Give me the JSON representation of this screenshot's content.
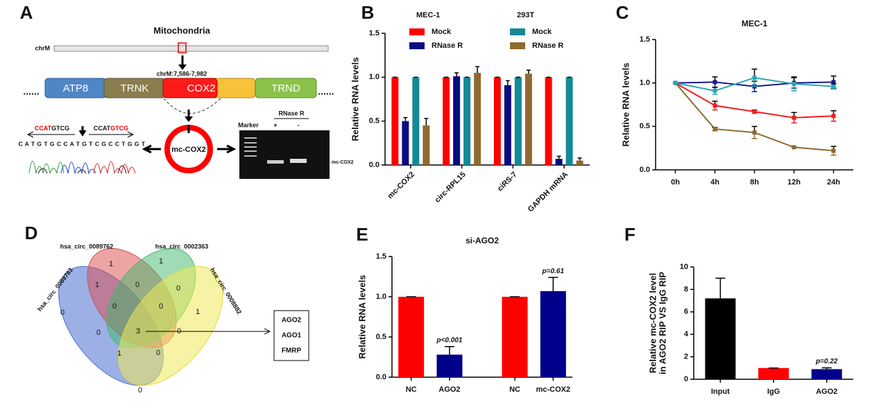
{
  "panel_a": {
    "letter": "A",
    "title": "Mitochondria",
    "chromosome": "chrM",
    "coordinate": "chrM:7,586-7,982",
    "genes": [
      "ATP8",
      "TRNK",
      "COX2",
      "TRND"
    ],
    "circ": "mc-COX2",
    "junction_left": [
      "CCAT",
      "GTCG"
    ],
    "junction_right": [
      "CCAT",
      "GTCG"
    ],
    "sequence": "C A T G T G C C A T G T C G C C T G G T",
    "gel_header": "RNase R",
    "gel_lanes": [
      "Marker",
      "+",
      "-"
    ],
    "gel_band": "mc-COX2"
  },
  "panel_d": {
    "letter": "D",
    "sets": [
      "hsa_circ_0089762",
      "hsa_circ_0002363",
      "hsa_circ_0089763",
      "hsa_circ_0008882"
    ],
    "counts": [
      1,
      1,
      1,
      0,
      0,
      0,
      0,
      0,
      1,
      0,
      3,
      0,
      1,
      0,
      0
    ],
    "proteins": [
      "AGO2",
      "AGO1",
      "FMRP"
    ]
  },
  "chart_data": [
    {
      "panel": "B",
      "type": "bar",
      "ylabel": "Relative RNA levels",
      "legend_titles": [
        "MEC-1",
        "293T"
      ],
      "categories": [
        "mc-COX2",
        "circ-RPL15",
        "ciRS-7",
        "GAPDH mRNA"
      ],
      "series": [
        {
          "name": "Mock",
          "color": "#ff0000",
          "values": [
            1,
            1,
            1,
            1
          ],
          "errors": [
            0,
            0,
            0,
            0
          ]
        },
        {
          "name": "RNase R",
          "color": "#0b0b80",
          "values": [
            0.5,
            1.01,
            0.91,
            0.07
          ],
          "errors": [
            0.04,
            0.04,
            0.05,
            0.03
          ]
        },
        {
          "name": "Mock",
          "color": "#138a95",
          "values": [
            1,
            1,
            1,
            1
          ],
          "errors": [
            0,
            0,
            0,
            0
          ]
        },
        {
          "name": "RNase R",
          "color": "#8f6a2f",
          "values": [
            0.45,
            1.05,
            1.04,
            0.05
          ],
          "errors": [
            0.08,
            0.07,
            0.04,
            0.03
          ]
        }
      ],
      "ylim": [
        0,
        1.5
      ],
      "yticks": [
        {
          "value": 0,
          "label": "0.0"
        },
        0.5,
        {
          "value": 1,
          "label": "1.0"
        },
        1.5
      ]
    },
    {
      "panel": "C",
      "type": "line",
      "title": "MEC-1",
      "ylabel": "Relative RNA levels",
      "categories": [
        "0h",
        "4h",
        "8h",
        "12h",
        "24h"
      ],
      "series": [
        {
          "color": "#f01e1e",
          "values": [
            1,
            0.74,
            0.67,
            0.6,
            0.62
          ],
          "errors": [
            0,
            0.05,
            0.02,
            0.06,
            0.06
          ]
        },
        {
          "color": "#8f6a2f",
          "values": [
            1,
            0.47,
            0.43,
            0.26,
            0.22
          ],
          "errors": [
            0,
            0.02,
            0.07,
            0,
            0.05
          ]
        },
        {
          "color": "#1a1a8a",
          "values": [
            1,
            1.01,
            0.96,
            1.0,
            1.01
          ],
          "errors": [
            0,
            0.06,
            0.06,
            0.06,
            0.07
          ]
        },
        {
          "color": "#2aa7b0",
          "values": [
            1,
            0.91,
            1.06,
            0.99,
            0.96
          ],
          "errors": [
            0,
            0.04,
            0.1,
            0.08,
            0.03
          ]
        }
      ],
      "ylim": [
        0,
        1.5
      ],
      "yticks": [
        {
          "value": 0,
          "label": "0.0"
        },
        0.5,
        {
          "value": 1,
          "label": "1.0"
        },
        1.5
      ]
    },
    {
      "panel": "E",
      "type": "bar",
      "title": "si-AGO2",
      "ylabel": "Relative RNA levels",
      "categories": [
        "NC",
        "AGO2",
        "NC",
        "mc-COX2"
      ],
      "values": [
        1,
        0.28,
        1,
        1.07
      ],
      "errors": [
        0,
        0.1,
        0,
        0.17
      ],
      "colors": [
        "#ff0000",
        "#00008b",
        "#ff0000",
        "#00008b"
      ],
      "value_annotations": [
        null,
        "p<0.001",
        null,
        "p=0.61"
      ],
      "ylim": [
        0,
        1.5
      ],
      "yticks": [
        {
          "value": 0,
          "label": "0.0"
        },
        0.5,
        {
          "value": 1,
          "label": "1.0"
        },
        1.5
      ]
    },
    {
      "panel": "F",
      "type": "bar",
      "ylabel": [
        "Relative mc-COX2 level",
        "in AGO2 RIP VS IgG RIP"
      ],
      "categories": [
        "Input",
        "IgG",
        "AGO2"
      ],
      "values": [
        7.2,
        1.0,
        0.9
      ],
      "errors": [
        1.8,
        0,
        0.12
      ],
      "colors": [
        "#000000",
        "#ff0000",
        "#00008b"
      ],
      "value_annotations": [
        null,
        null,
        "p=0.22"
      ],
      "ylim": [
        0,
        10
      ],
      "yticks": [
        0,
        2,
        4,
        6,
        8,
        10
      ]
    }
  ]
}
